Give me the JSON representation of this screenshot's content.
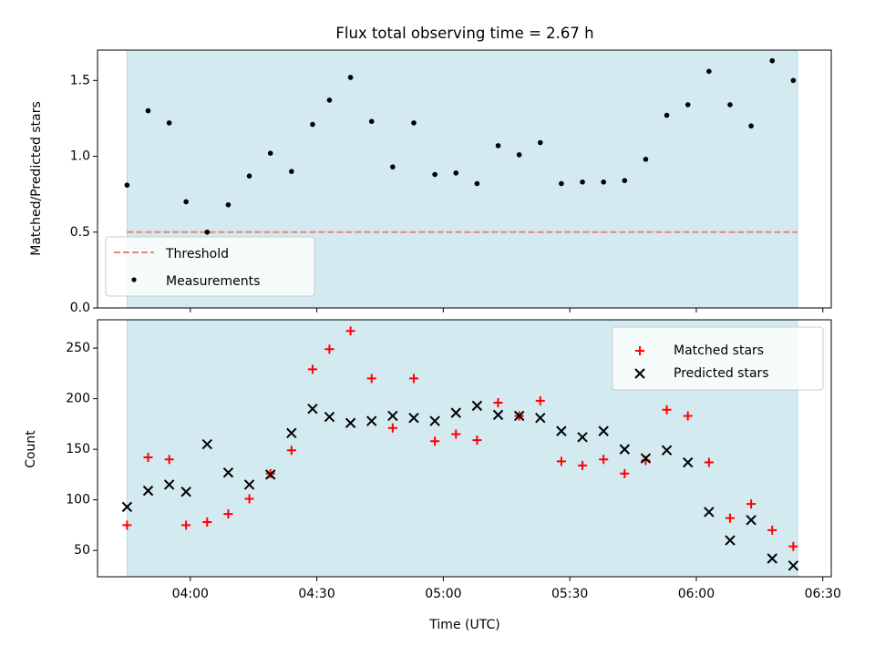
{
  "title": "Flux total observing time = 2.67 h",
  "colors": {
    "shade": "#d3eaf0",
    "threshold": "#f08080",
    "matched": "#ff0000",
    "predicted": "#000000",
    "measurement": "#000000"
  },
  "chart_data": [
    {
      "type": "scatter",
      "ylabel": "Matched/Predicted stars",
      "xlabel": "",
      "ylim": [
        0,
        1.7
      ],
      "yticks": [
        0.0,
        0.5,
        1.0,
        1.5
      ],
      "ytick_labels": [
        "0.0",
        "0.5",
        "1.0",
        "1.5"
      ],
      "threshold": 0.5,
      "shaded_interval": [
        "03:45",
        "06:24"
      ],
      "legend": [
        "Threshold",
        "Measurements"
      ],
      "legend_position": "lower-left",
      "series": [
        {
          "name": "Measurements",
          "marker": "dot",
          "x": [
            "03:45",
            "03:50",
            "03:55",
            "03:59",
            "04:04",
            "04:09",
            "04:14",
            "04:19",
            "04:24",
            "04:29",
            "04:33",
            "04:38",
            "04:43",
            "04:48",
            "04:53",
            "04:58",
            "05:03",
            "05:08",
            "05:13",
            "05:18",
            "05:23",
            "05:28",
            "05:33",
            "05:38",
            "05:43",
            "05:48",
            "05:53",
            "05:58",
            "06:03",
            "06:08",
            "06:13",
            "06:18",
            "06:23"
          ],
          "y": [
            0.81,
            1.3,
            1.22,
            0.7,
            0.5,
            0.68,
            0.87,
            1.02,
            0.9,
            1.21,
            1.37,
            1.52,
            1.23,
            0.93,
            1.22,
            0.88,
            0.89,
            0.82,
            1.07,
            1.01,
            1.09,
            0.82,
            0.83,
            0.83,
            0.84,
            0.98,
            1.27,
            1.34,
            1.56,
            1.34,
            1.2,
            1.63,
            1.5
          ]
        }
      ]
    },
    {
      "type": "scatter",
      "ylabel": "Count",
      "xlabel": "Time (UTC)",
      "ylim": [
        24,
        278
      ],
      "xlim": [
        "03:38",
        "06:32"
      ],
      "yticks": [
        50,
        100,
        150,
        200,
        250
      ],
      "ytick_labels": [
        "50",
        "100",
        "150",
        "200",
        "250"
      ],
      "xticks": [
        "04:00",
        "04:30",
        "05:00",
        "05:30",
        "06:00",
        "06:30"
      ],
      "shaded_interval": [
        "03:45",
        "06:24"
      ],
      "legend": [
        "Matched stars",
        "Predicted stars"
      ],
      "legend_position": "top-right",
      "series": [
        {
          "name": "Matched stars",
          "marker": "plus",
          "x": [
            "03:45",
            "03:50",
            "03:55",
            "03:59",
            "04:04",
            "04:09",
            "04:14",
            "04:19",
            "04:24",
            "04:29",
            "04:33",
            "04:38",
            "04:43",
            "04:48",
            "04:53",
            "04:58",
            "05:03",
            "05:08",
            "05:13",
            "05:18",
            "05:23",
            "05:28",
            "05:33",
            "05:38",
            "05:43",
            "05:48",
            "05:53",
            "05:58",
            "06:03",
            "06:08",
            "06:13",
            "06:18",
            "06:23"
          ],
          "y": [
            75,
            142,
            140,
            75,
            78,
            86,
            101,
            126,
            149,
            229,
            249,
            267,
            220,
            171,
            220,
            158,
            165,
            159,
            196,
            183,
            198,
            138,
            134,
            140,
            126,
            139,
            189,
            183,
            137,
            82,
            96,
            70,
            54
          ]
        },
        {
          "name": "Predicted stars",
          "marker": "x",
          "x": [
            "03:45",
            "03:50",
            "03:55",
            "03:59",
            "04:04",
            "04:09",
            "04:14",
            "04:19",
            "04:24",
            "04:29",
            "04:33",
            "04:38",
            "04:43",
            "04:48",
            "04:53",
            "04:58",
            "05:03",
            "05:08",
            "05:13",
            "05:18",
            "05:23",
            "05:28",
            "05:33",
            "05:38",
            "05:43",
            "05:48",
            "05:53",
            "05:58",
            "06:03",
            "06:08",
            "06:13",
            "06:18",
            "06:23"
          ],
          "y": [
            93,
            109,
            115,
            108,
            155,
            127,
            115,
            125,
            166,
            190,
            182,
            176,
            178,
            183,
            181,
            178,
            186,
            193,
            184,
            183,
            181,
            168,
            162,
            168,
            150,
            141,
            149,
            137,
            88,
            60,
            80,
            42,
            35
          ]
        }
      ]
    }
  ]
}
